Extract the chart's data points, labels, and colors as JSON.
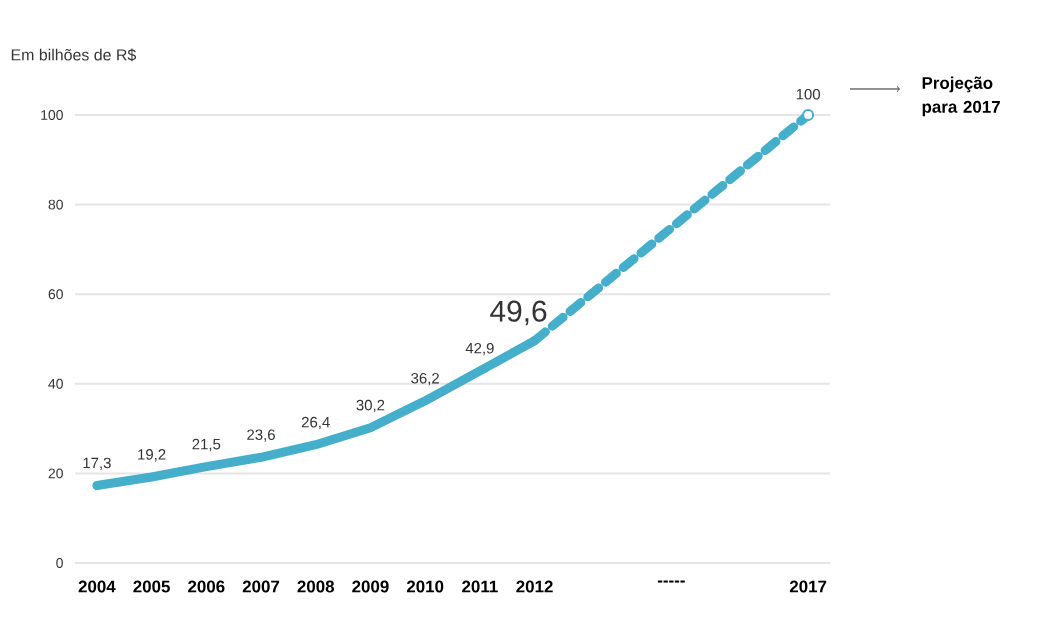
{
  "chart_data": {
    "type": "line",
    "ylabel": "Em bilhões de R$",
    "series": [
      {
        "color": "#45aecb",
        "line_style": "solid",
        "x": [
          2004,
          2005,
          2006,
          2007,
          2008,
          2009,
          2010,
          2011,
          2012
        ],
        "values": [
          17.3,
          19.2,
          21.5,
          23.6,
          26.4,
          30.2,
          36.2,
          42.9,
          49.6
        ],
        "value_labels": [
          "17,3",
          "19,2",
          "21,5",
          "23,6",
          "26,4",
          "30,2",
          "36,2",
          "42,9",
          "49,6"
        ]
      },
      {
        "color": "#45aecb",
        "line_style": "dashed",
        "x": [
          2012,
          2017
        ],
        "values": [
          49.6,
          100
        ]
      },
      {
        "type": "scatter",
        "color": "#45aecb",
        "marker": "circle",
        "x": [
          2017
        ],
        "values": [
          100
        ],
        "value_labels": [
          "100"
        ]
      }
    ],
    "xlim": [
      2003.6,
      2017.4
    ],
    "xticks": [
      2004,
      2005,
      2006,
      2007,
      2008,
      2009,
      2010,
      2011,
      2012,
      {
        "value": 2014.5,
        "label": "-----"
      },
      2017
    ],
    "ylim": [
      0,
      100
    ],
    "yticks": [
      0,
      20,
      40,
      60,
      80,
      100
    ],
    "grid": "y",
    "annotations": [
      "Projeção para 2017"
    ]
  }
}
